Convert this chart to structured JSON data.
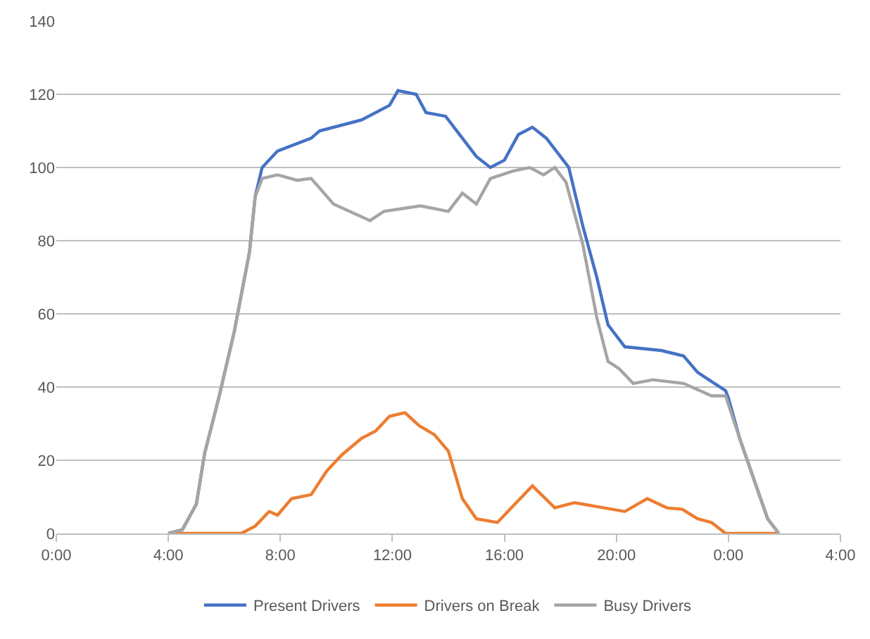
{
  "chart_data": {
    "type": "line",
    "xlim": [
      "2000-01-01T00:00",
      "2000-01-02T04:00"
    ],
    "xticks": [
      {
        "value": "2000-01-01T00:00",
        "label": "0:00"
      },
      {
        "value": "2000-01-01T04:00",
        "label": "4:00"
      },
      {
        "value": "2000-01-01T08:00",
        "label": "8:00"
      },
      {
        "value": "2000-01-01T12:00",
        "label": "12:00"
      },
      {
        "value": "2000-01-01T16:00",
        "label": "16:00"
      },
      {
        "value": "2000-01-01T20:00",
        "label": "20:00"
      },
      {
        "value": "2000-01-02T00:00",
        "label": "0:00"
      },
      {
        "value": "2000-01-02T04:00",
        "label": "4:00"
      }
    ],
    "ylim": [
      0,
      140
    ],
    "yticks": [
      0,
      20,
      40,
      60,
      80,
      100,
      120,
      140
    ],
    "grid": "y",
    "legend": "bottom",
    "marker": "none",
    "line_style": "solid",
    "series": [
      {
        "name": "Present Drivers",
        "color": "#4472c4",
        "x": [
          "2000-01-01T04:00",
          "2000-01-01T04:30",
          "2000-01-01T05:00",
          "2000-01-01T05:18",
          "2000-01-01T05:48",
          "2000-01-01T06:21",
          "2000-01-01T06:54",
          "2000-01-01T07:06",
          "2000-01-01T07:21",
          "2000-01-01T07:54",
          "2000-01-01T09:06",
          "2000-01-01T09:24",
          "2000-01-01T10:54",
          "2000-01-01T11:54",
          "2000-01-01T12:12",
          "2000-01-01T12:51",
          "2000-01-01T13:12",
          "2000-01-01T13:54",
          "2000-01-01T14:30",
          "2000-01-01T15:00",
          "2000-01-01T15:30",
          "2000-01-01T16:00",
          "2000-01-01T16:30",
          "2000-01-01T17:00",
          "2000-01-01T17:30",
          "2000-01-01T18:18",
          "2000-01-01T18:48",
          "2000-01-01T19:18",
          "2000-01-01T19:42",
          "2000-01-01T20:18",
          "2000-01-01T21:36",
          "2000-01-01T22:24",
          "2000-01-01T22:54",
          "2000-01-01T23:54",
          "2000-01-02T00:00",
          "2000-01-02T00:24",
          "2000-01-02T00:54",
          "2000-01-02T01:24",
          "2000-01-02T01:48"
        ],
        "values": [
          0,
          1,
          8,
          22,
          37,
          55,
          77,
          92,
          100,
          104.5,
          108,
          110,
          113,
          117,
          121,
          120,
          115,
          114,
          108,
          103,
          100,
          102,
          109,
          111,
          108,
          100,
          84,
          70,
          57,
          51,
          50,
          48.5,
          44,
          39,
          37,
          26,
          15,
          4,
          0
        ]
      },
      {
        "name": "Drivers on Break",
        "color": "#ed7d31",
        "x": [
          "2000-01-01T04:00",
          "2000-01-01T06:36",
          "2000-01-01T07:06",
          "2000-01-01T07:36",
          "2000-01-01T07:54",
          "2000-01-01T08:24",
          "2000-01-01T09:06",
          "2000-01-01T09:39",
          "2000-01-01T10:12",
          "2000-01-01T10:54",
          "2000-01-01T11:24",
          "2000-01-01T11:54",
          "2000-01-01T12:27",
          "2000-01-01T12:57",
          "2000-01-01T13:30",
          "2000-01-01T14:00",
          "2000-01-01T14:30",
          "2000-01-01T15:00",
          "2000-01-01T15:45",
          "2000-01-01T16:15",
          "2000-01-01T17:00",
          "2000-01-01T17:48",
          "2000-01-01T18:30",
          "2000-01-01T20:18",
          "2000-01-01T21:06",
          "2000-01-01T21:48",
          "2000-01-01T22:21",
          "2000-01-01T22:54",
          "2000-01-01T23:24",
          "2000-01-01T23:54",
          "2000-01-02T01:48"
        ],
        "values": [
          0,
          0,
          2,
          6,
          5,
          9.5,
          10.6,
          17,
          21.5,
          26,
          28,
          32,
          33,
          29.5,
          27,
          22.5,
          9.5,
          4,
          3,
          7,
          13,
          7,
          8.4,
          6,
          9.5,
          7,
          6.6,
          4,
          3,
          0,
          0
        ]
      },
      {
        "name": "Busy Drivers",
        "color": "#a5a5a5",
        "x": [
          "2000-01-01T04:00",
          "2000-01-01T04:30",
          "2000-01-01T05:00",
          "2000-01-01T05:18",
          "2000-01-01T05:48",
          "2000-01-01T06:21",
          "2000-01-01T06:54",
          "2000-01-01T07:06",
          "2000-01-01T07:21",
          "2000-01-01T07:54",
          "2000-01-01T08:36",
          "2000-01-01T09:06",
          "2000-01-01T09:54",
          "2000-01-01T11:12",
          "2000-01-01T11:42",
          "2000-01-01T13:00",
          "2000-01-01T14:00",
          "2000-01-01T14:30",
          "2000-01-01T15:00",
          "2000-01-01T15:30",
          "2000-01-01T16:18",
          "2000-01-01T16:54",
          "2000-01-01T17:24",
          "2000-01-01T17:48",
          "2000-01-01T18:12",
          "2000-01-01T18:48",
          "2000-01-01T19:18",
          "2000-01-01T19:42",
          "2000-01-01T20:06",
          "2000-01-01T20:36",
          "2000-01-01T21:18",
          "2000-01-01T22:24",
          "2000-01-01T23:24",
          "2000-01-01T23:54",
          "2000-01-02T00:24",
          "2000-01-02T00:54",
          "2000-01-02T01:24",
          "2000-01-02T01:48"
        ],
        "values": [
          0,
          1,
          8,
          22,
          37,
          55,
          77,
          92,
          97,
          98,
          96.5,
          97,
          90,
          85.5,
          88,
          89.5,
          88,
          93,
          90,
          97,
          99,
          100,
          98,
          100,
          96,
          79,
          59,
          47,
          45,
          41,
          42,
          41,
          37.6,
          37.6,
          26,
          15,
          4,
          0
        ]
      }
    ]
  }
}
